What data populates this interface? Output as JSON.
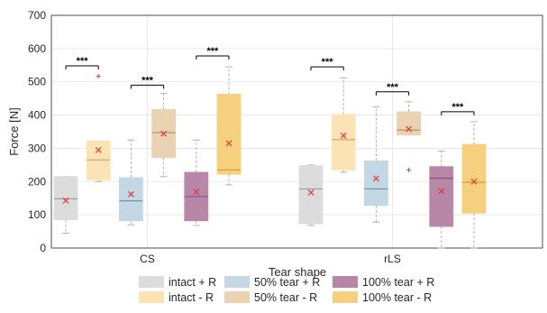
{
  "chart_data": {
    "type": "box",
    "xlabel": "Tear shape",
    "ylabel": "Force [N]",
    "ylim": [
      0,
      700
    ],
    "yticks": [
      0,
      100,
      200,
      300,
      400,
      500,
      600,
      700
    ],
    "grid": true,
    "groups": [
      "CS",
      "rLS"
    ],
    "significance_label": "***",
    "legend_position": "bottom",
    "legend_columns": 3,
    "series": [
      {
        "name": "intact + R",
        "color": "#dcdcdc",
        "median_color": "#9a9a9a"
      },
      {
        "name": "intact - R",
        "color": "#fbe3b5",
        "median_color": "#d9a250"
      },
      {
        "name": "50% tear + R",
        "color": "#c3d7e4",
        "median_color": "#6f8ea3"
      },
      {
        "name": "50% tear - R",
        "color": "#e9d3b3",
        "median_color": "#b58b57"
      },
      {
        "name": "100% tear + R",
        "color": "#b886a6",
        "median_color": "#8a4e77"
      },
      {
        "name": "100% tear - R",
        "color": "#f5d07e",
        "median_color": "#c9992e"
      }
    ],
    "boxes": [
      {
        "group": "CS",
        "series": "intact + R",
        "min": 45,
        "q1": 85,
        "median": 148,
        "q3": 215,
        "max": 215,
        "mean": 143,
        "outliers": []
      },
      {
        "group": "CS",
        "series": "intact - R",
        "min": 200,
        "q1": 205,
        "median": 265,
        "q3": 322,
        "max": 322,
        "mean": 295,
        "outliers": [
          517
        ]
      },
      {
        "group": "CS",
        "series": "50% tear + R",
        "min": 70,
        "q1": 82,
        "median": 142,
        "q3": 212,
        "max": 325,
        "mean": 162,
        "outliers": []
      },
      {
        "group": "CS",
        "series": "50% tear - R",
        "min": 215,
        "q1": 272,
        "median": 347,
        "q3": 417,
        "max": 465,
        "mean": 344,
        "outliers": []
      },
      {
        "group": "CS",
        "series": "100% tear + R",
        "min": 68,
        "q1": 82,
        "median": 155,
        "q3": 228,
        "max": 325,
        "mean": 169,
        "outliers": []
      },
      {
        "group": "CS",
        "series": "100% tear - R",
        "min": 190,
        "q1": 222,
        "median": 235,
        "q3": 463,
        "max": 545,
        "mean": 315,
        "outliers": []
      },
      {
        "group": "rLS",
        "series": "intact + R",
        "min": 68,
        "q1": 73,
        "median": 178,
        "q3": 248,
        "max": 250,
        "mean": 167,
        "outliers": []
      },
      {
        "group": "rLS",
        "series": "intact - R",
        "min": 228,
        "q1": 235,
        "median": 326,
        "q3": 402,
        "max": 512,
        "mean": 338,
        "outliers": []
      },
      {
        "group": "rLS",
        "series": "50% tear + R",
        "min": 78,
        "q1": 128,
        "median": 178,
        "q3": 262,
        "max": 425,
        "mean": 209,
        "outliers": []
      },
      {
        "group": "rLS",
        "series": "50% tear - R",
        "min": 340,
        "q1": 340,
        "median": 355,
        "q3": 410,
        "max": 440,
        "mean": 358,
        "outliers": [
          235
        ]
      },
      {
        "group": "rLS",
        "series": "100% tear + R",
        "min": 0,
        "q1": 65,
        "median": 210,
        "q3": 245,
        "max": 292,
        "mean": 171,
        "outliers": []
      },
      {
        "group": "rLS",
        "series": "100% tear - R",
        "min": 0,
        "q1": 105,
        "median": 198,
        "q3": 312,
        "max": 380,
        "mean": 200,
        "outliers": []
      }
    ],
    "significance": [
      {
        "pair": [
          0,
          1
        ],
        "y": 548
      },
      {
        "pair": [
          2,
          3
        ],
        "y": 490
      },
      {
        "pair": [
          4,
          5
        ],
        "y": 578
      },
      {
        "pair": [
          6,
          7
        ],
        "y": 545
      },
      {
        "pair": [
          8,
          9
        ],
        "y": 470
      },
      {
        "pair": [
          10,
          11
        ],
        "y": 410
      }
    ]
  }
}
